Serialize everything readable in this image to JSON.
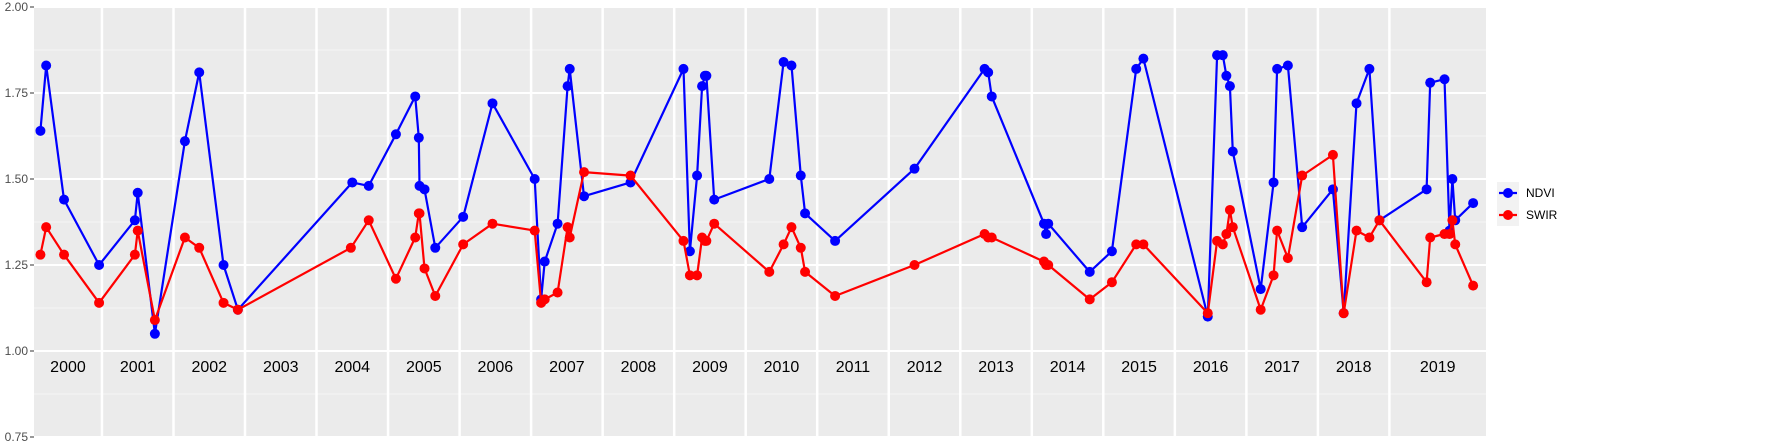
{
  "chart_data": {
    "type": "line",
    "title": "",
    "xlabel": "",
    "ylabel": "",
    "ylim": [
      0.75,
      2.0
    ],
    "yticks": [
      "0.75",
      "1.00",
      "1.25",
      "1.50",
      "1.75",
      "2.00"
    ],
    "xlim": [
      1999.55,
      2019.85
    ],
    "years": [
      "2000",
      "2001",
      "2002",
      "2003",
      "2004",
      "2005",
      "2006",
      "2007",
      "2008",
      "2009",
      "2010",
      "2011",
      "2012",
      "2013",
      "2014",
      "2015",
      "2016",
      "2017",
      "2018",
      "2019"
    ],
    "grid": true,
    "legend_position": "right",
    "series": [
      {
        "name": "NDVI",
        "color": "#0000ff",
        "x": [
          1999.64,
          1999.72,
          1999.97,
          2000.46,
          2000.96,
          2001.0,
          2001.24,
          2001.66,
          2001.86,
          2002.2,
          2002.4,
          2004.0,
          2004.23,
          2004.61,
          2004.88,
          2004.93,
          2004.94,
          2005.01,
          2005.16,
          2005.55,
          2005.96,
          2006.55,
          2006.64,
          2006.69,
          2006.87,
          2007.01,
          2007.04,
          2007.24,
          2007.89,
          2008.63,
          2008.72,
          2008.82,
          2008.89,
          2008.93,
          2008.95,
          2009.06,
          2009.83,
          2010.03,
          2010.14,
          2010.27,
          2010.33,
          2010.75,
          2011.86,
          2012.84,
          2012.89,
          2012.94,
          2013.67,
          2013.7,
          2013.73,
          2014.31,
          2014.62,
          2014.96,
          2015.06,
          2015.96,
          2016.09,
          2016.17,
          2016.22,
          2016.27,
          2016.31,
          2016.7,
          2016.88,
          2016.93,
          2017.08,
          2017.28,
          2017.71,
          2017.86,
          2018.04,
          2018.22,
          2018.36,
          2019.02,
          2019.07,
          2019.27,
          2019.34,
          2019.38,
          2019.42,
          2019.67
        ],
        "y": [
          1.64,
          1.83,
          1.44,
          1.25,
          1.38,
          1.46,
          1.05,
          1.61,
          1.81,
          1.25,
          1.12,
          1.49,
          1.48,
          1.63,
          1.74,
          1.62,
          1.48,
          1.47,
          1.3,
          1.39,
          1.72,
          1.5,
          1.15,
          1.26,
          1.37,
          1.77,
          1.82,
          1.45,
          1.49,
          1.82,
          1.29,
          1.51,
          1.77,
          1.8,
          1.8,
          1.44,
          1.5,
          1.84,
          1.83,
          1.51,
          1.4,
          1.32,
          1.53,
          1.82,
          1.81,
          1.74,
          1.37,
          1.34,
          1.37,
          1.23,
          1.29,
          1.82,
          1.85,
          1.1,
          1.86,
          1.86,
          1.8,
          1.77,
          1.58,
          1.18,
          1.49,
          1.82,
          1.83,
          1.36,
          1.47,
          1.11,
          1.72,
          1.82,
          1.38,
          1.47,
          1.78,
          1.79,
          1.35,
          1.5,
          1.38,
          1.43
        ]
      },
      {
        "name": "SWIR",
        "color": "#ff0000",
        "x": [
          1999.64,
          1999.72,
          1999.97,
          2000.46,
          2000.96,
          2001.0,
          2001.24,
          2001.66,
          2001.86,
          2002.2,
          2002.4,
          2003.98,
          2004.23,
          2004.61,
          2004.88,
          2004.93,
          2004.94,
          2005.01,
          2005.16,
          2005.55,
          2005.96,
          2006.55,
          2006.64,
          2006.69,
          2006.87,
          2007.01,
          2007.04,
          2007.24,
          2007.89,
          2008.63,
          2008.72,
          2008.82,
          2008.89,
          2008.93,
          2008.95,
          2009.06,
          2009.83,
          2010.03,
          2010.14,
          2010.27,
          2010.33,
          2010.75,
          2011.86,
          2012.84,
          2012.89,
          2012.94,
          2013.67,
          2013.7,
          2013.73,
          2014.31,
          2014.62,
          2014.96,
          2015.06,
          2015.96,
          2016.09,
          2016.17,
          2016.22,
          2016.27,
          2016.31,
          2016.7,
          2016.88,
          2016.93,
          2017.08,
          2017.28,
          2017.71,
          2017.86,
          2018.04,
          2018.22,
          2018.36,
          2019.02,
          2019.07,
          2019.27,
          2019.34,
          2019.38,
          2019.42,
          2019.67
        ],
        "y": [
          1.28,
          1.36,
          1.28,
          1.14,
          1.28,
          1.35,
          1.09,
          1.33,
          1.3,
          1.14,
          1.12,
          1.3,
          1.38,
          1.21,
          1.33,
          1.4,
          1.4,
          1.24,
          1.16,
          1.31,
          1.37,
          1.35,
          1.14,
          1.15,
          1.17,
          1.36,
          1.33,
          1.52,
          1.51,
          1.32,
          1.22,
          1.22,
          1.33,
          1.32,
          1.32,
          1.37,
          1.23,
          1.31,
          1.36,
          1.3,
          1.23,
          1.16,
          1.25,
          1.34,
          1.33,
          1.33,
          1.26,
          1.25,
          1.25,
          1.15,
          1.2,
          1.31,
          1.31,
          1.11,
          1.32,
          1.31,
          1.34,
          1.41,
          1.36,
          1.12,
          1.22,
          1.35,
          1.27,
          1.51,
          1.57,
          1.11,
          1.35,
          1.33,
          1.38,
          1.2,
          1.33,
          1.34,
          1.34,
          1.38,
          1.31,
          1.19
        ]
      }
    ]
  }
}
